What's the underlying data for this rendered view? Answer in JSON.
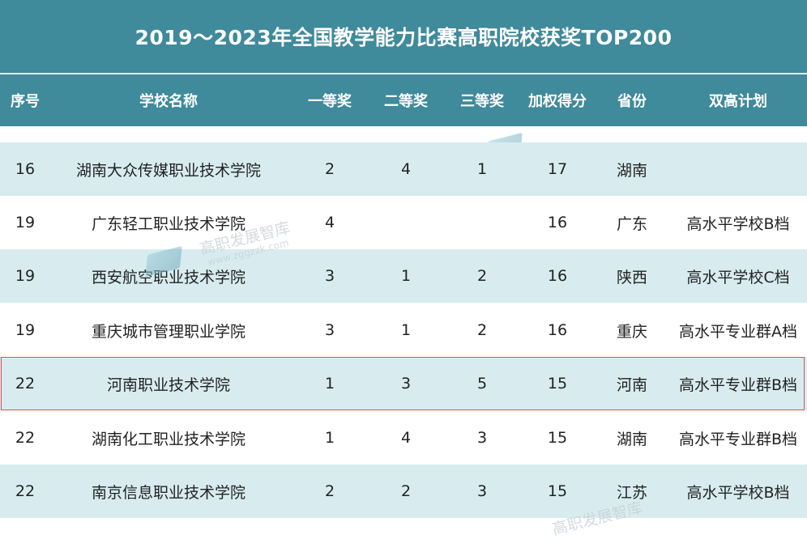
{
  "title": "2019～2023年全国教学能力比赛高职院校获奖TOP200",
  "headers": {
    "rank": "序号",
    "school": "学校名称",
    "first": "一等奖",
    "second": "二等奖",
    "third": "三等奖",
    "score": "加权得分",
    "province": "省份",
    "plan": "双高计划"
  },
  "rows": [
    {
      "rank": "16",
      "school": "湖南大众传媒职业技术学院",
      "first": "2",
      "second": "4",
      "third": "1",
      "score": "17",
      "province": "湖南",
      "plan": ""
    },
    {
      "rank": "19",
      "school": "广东轻工职业技术学院",
      "first": "4",
      "second": "",
      "third": "",
      "score": "16",
      "province": "广东",
      "plan": "高水平学校B档"
    },
    {
      "rank": "19",
      "school": "西安航空职业技术学院",
      "first": "3",
      "second": "1",
      "third": "2",
      "score": "16",
      "province": "陕西",
      "plan": "高水平学校C档"
    },
    {
      "rank": "19",
      "school": "重庆城市管理职业学院",
      "first": "3",
      "second": "1",
      "third": "2",
      "score": "16",
      "province": "重庆",
      "plan": "高水平专业群A档"
    },
    {
      "rank": "22",
      "school": "河南职业技术学院",
      "first": "1",
      "second": "3",
      "third": "5",
      "score": "15",
      "province": "河南",
      "plan": "高水平专业群B档"
    },
    {
      "rank": "22",
      "school": "湖南化工职业技术学院",
      "first": "1",
      "second": "4",
      "third": "3",
      "score": "15",
      "province": "湖南",
      "plan": "高水平专业群B档"
    },
    {
      "rank": "22",
      "school": "南京信息职业技术学院",
      "first": "2",
      "second": "2",
      "third": "3",
      "score": "15",
      "province": "江苏",
      "plan": "高水平学校B档"
    }
  ],
  "watermark": {
    "text": "高职发展智库",
    "url": "www.zggzzk.com"
  },
  "colors": {
    "header_bg": "#3f8a9b",
    "stripe_bg": "#d8ecef",
    "highlight_border": "#d9534f"
  }
}
